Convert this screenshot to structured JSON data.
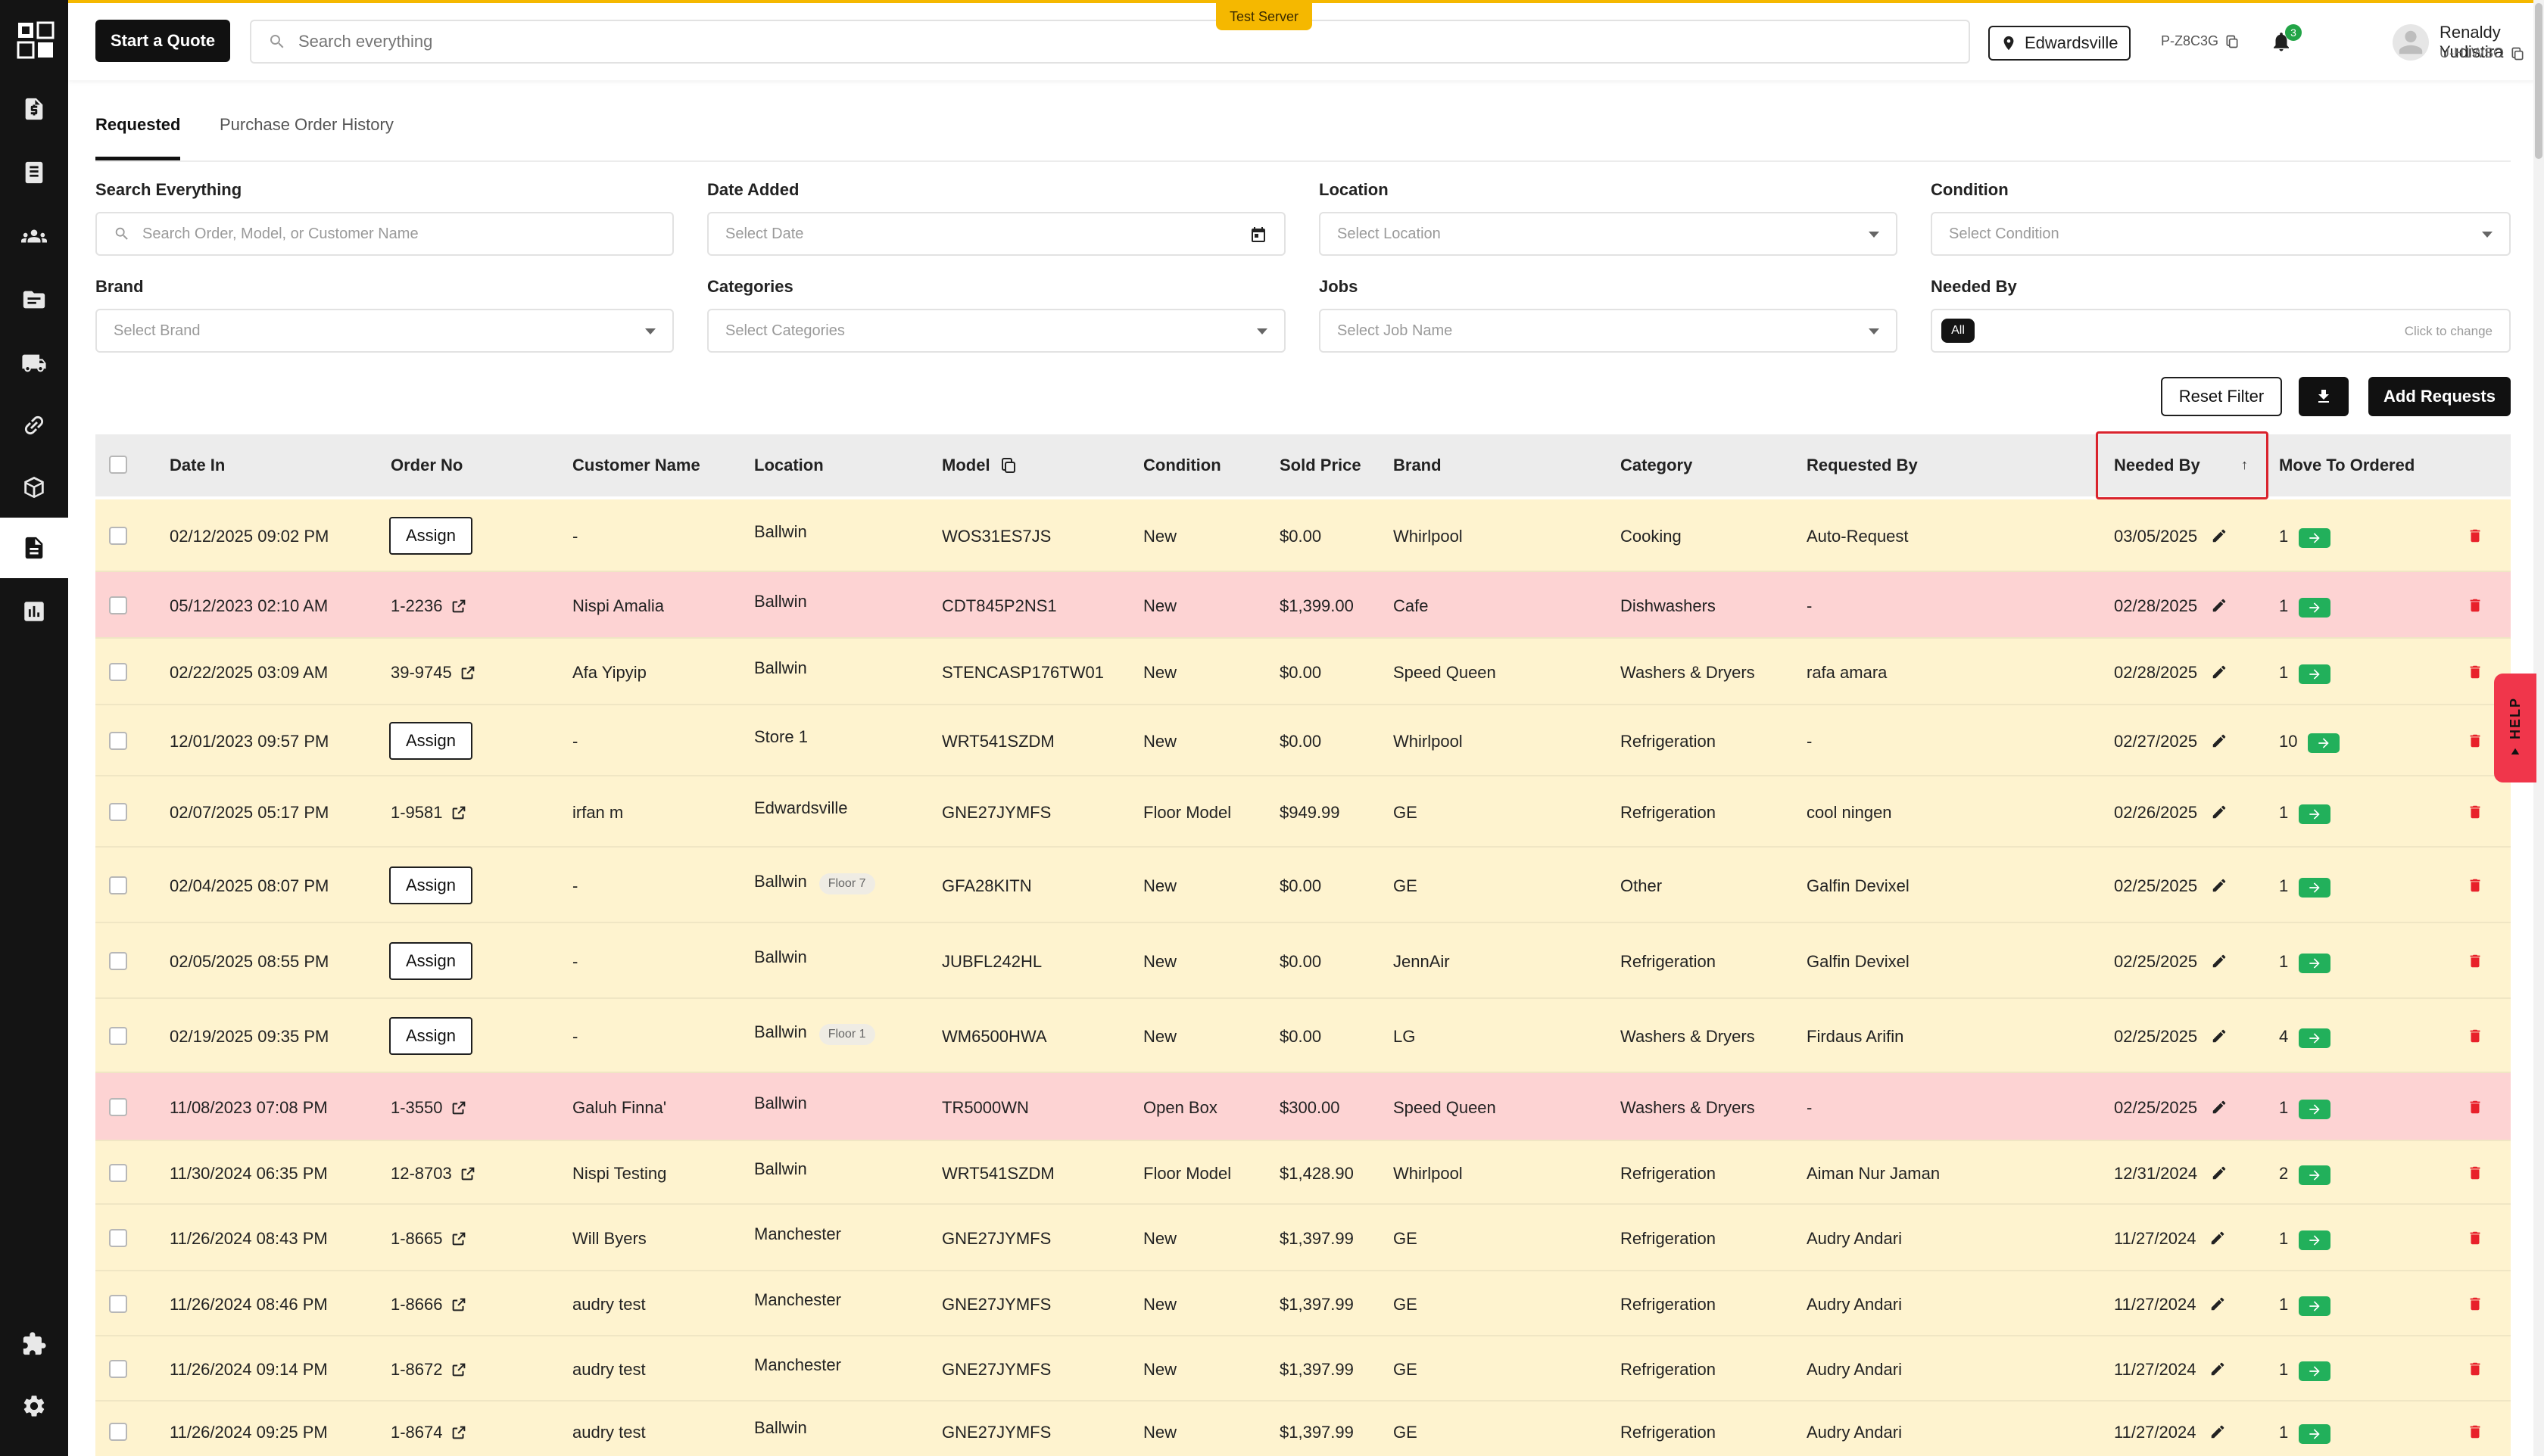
{
  "topbar": {
    "start_quote": "Start a Quote",
    "search_placeholder": "Search everything",
    "test_server": "Test Server",
    "location": "Edwardsville",
    "store_code": "P-Z8C3G",
    "notification_count": "3",
    "user_name": "Renaldy Yudistira",
    "user_code": "U-H1WSO"
  },
  "tabs": [
    {
      "label": "Requested"
    },
    {
      "label": "Purchase Order History"
    }
  ],
  "filters": {
    "search": {
      "label": "Search Everything",
      "placeholder": "Search Order, Model, or Customer Name"
    },
    "date_added": {
      "label": "Date Added",
      "placeholder": "Select Date"
    },
    "location": {
      "label": "Location",
      "placeholder": "Select Location"
    },
    "condition": {
      "label": "Condition",
      "placeholder": "Select Condition"
    },
    "brand": {
      "label": "Brand",
      "placeholder": "Select Brand"
    },
    "categories": {
      "label": "Categories",
      "placeholder": "Select Categories"
    },
    "jobs": {
      "label": "Jobs",
      "placeholder": "Select Job Name"
    },
    "needed_by": {
      "label": "Needed By",
      "value": "All",
      "hint": "Click to change"
    }
  },
  "actions": {
    "reset": "Reset Filter",
    "add": "Add Requests"
  },
  "table": {
    "headers": {
      "date_in": "Date In",
      "order_no": "Order No",
      "customer": "Customer Name",
      "location": "Location",
      "model": "Model",
      "condition": "Condition",
      "sold_price": "Sold Price",
      "brand": "Brand",
      "category": "Category",
      "requested_by": "Requested By",
      "needed_by": "Needed By",
      "move": "Move To Ordered"
    },
    "assign_label": "Assign",
    "rows": [
      {
        "date": "02/12/2025 09:02 PM",
        "order": "",
        "customer": "-",
        "location": "Ballwin",
        "floor": "",
        "model": "WOS31ES7JS",
        "condition": "New",
        "price": "$0.00",
        "brand": "Whirlpool",
        "category": "Cooking",
        "requested_by": "Auto-Request",
        "needed": "03/05/2025",
        "qty": "1",
        "color": "yellow"
      },
      {
        "date": "05/12/2023 02:10 AM",
        "order": "1-2236",
        "customer": "Nispi Amalia",
        "location": "Ballwin",
        "floor": "",
        "model": "CDT845P2NS1",
        "condition": "New",
        "price": "$1,399.00",
        "brand": "Cafe",
        "category": "Dishwashers",
        "requested_by": "-",
        "needed": "02/28/2025",
        "qty": "1",
        "color": "red"
      },
      {
        "date": "02/22/2025 03:09 AM",
        "order": "39-9745",
        "customer": "Afa Yipyip",
        "location": "Ballwin",
        "floor": "",
        "model": "STENCASP176TW01",
        "condition": "New",
        "price": "$0.00",
        "brand": "Speed Queen",
        "category": "Washers & Dryers",
        "requested_by": "rafa amara",
        "needed": "02/28/2025",
        "qty": "1",
        "color": "yellow"
      },
      {
        "date": "12/01/2023 09:57 PM",
        "order": "",
        "customer": "-",
        "location": "Store 1",
        "floor": "",
        "model": "WRT541SZDM",
        "condition": "New",
        "price": "$0.00",
        "brand": "Whirlpool",
        "category": "Refrigeration",
        "requested_by": "-",
        "needed": "02/27/2025",
        "qty": "10",
        "color": "yellow"
      },
      {
        "date": "02/07/2025 05:17 PM",
        "order": "1-9581",
        "customer": "irfan m",
        "location": "Edwardsville",
        "floor": "",
        "model": "GNE27JYMFS",
        "condition": "Floor Model",
        "price": "$949.99",
        "brand": "GE",
        "category": "Refrigeration",
        "requested_by": "cool ningen",
        "needed": "02/26/2025",
        "qty": "1",
        "color": "yellow"
      },
      {
        "date": "02/04/2025 08:07 PM",
        "order": "",
        "customer": "-",
        "location": "Ballwin",
        "floor": "Floor 7",
        "model": "GFA28KITN",
        "condition": "New",
        "price": "$0.00",
        "brand": "GE",
        "category": "Other",
        "requested_by": "Galfin Devixel",
        "needed": "02/25/2025",
        "qty": "1",
        "color": "yellow"
      },
      {
        "date": "02/05/2025 08:55 PM",
        "order": "",
        "customer": "-",
        "location": "Ballwin",
        "floor": "",
        "model": "JUBFL242HL",
        "condition": "New",
        "price": "$0.00",
        "brand": "JennAir",
        "category": "Refrigeration",
        "requested_by": "Galfin Devixel",
        "needed": "02/25/2025",
        "qty": "1",
        "color": "yellow"
      },
      {
        "date": "02/19/2025 09:35 PM",
        "order": "",
        "customer": "-",
        "location": "Ballwin",
        "floor": "Floor 1",
        "model": "WM6500HWA",
        "condition": "New",
        "price": "$0.00",
        "brand": "LG",
        "category": "Washers & Dryers",
        "requested_by": "Firdaus Arifin",
        "needed": "02/25/2025",
        "qty": "4",
        "color": "yellow"
      },
      {
        "date": "11/08/2023 07:08 PM",
        "order": "1-3550",
        "customer": "Galuh Finna'",
        "location": "Ballwin",
        "floor": "",
        "model": "TR5000WN",
        "condition": "Open Box",
        "price": "$300.00",
        "brand": "Speed Queen",
        "category": "Washers & Dryers",
        "requested_by": "-",
        "needed": "02/25/2025",
        "qty": "1",
        "color": "red"
      },
      {
        "date": "11/30/2024 06:35 PM",
        "order": "12-8703",
        "customer": "Nispi Testing",
        "location": "Ballwin",
        "floor": "",
        "model": "WRT541SZDM",
        "condition": "Floor Model",
        "price": "$1,428.90",
        "brand": "Whirlpool",
        "category": "Refrigeration",
        "requested_by": "Aiman Nur Jaman",
        "needed": "12/31/2024",
        "qty": "2",
        "color": "yellow"
      },
      {
        "date": "11/26/2024 08:43 PM",
        "order": "1-8665",
        "customer": "Will Byers",
        "location": "Manchester",
        "floor": "",
        "model": "GNE27JYMFS",
        "condition": "New",
        "price": "$1,397.99",
        "brand": "GE",
        "category": "Refrigeration",
        "requested_by": "Audry Andari",
        "needed": "11/27/2024",
        "qty": "1",
        "color": "yellow"
      },
      {
        "date": "11/26/2024 08:46 PM",
        "order": "1-8666",
        "customer": "audry test",
        "location": "Manchester",
        "floor": "",
        "model": "GNE27JYMFS",
        "condition": "New",
        "price": "$1,397.99",
        "brand": "GE",
        "category": "Refrigeration",
        "requested_by": "Audry Andari",
        "needed": "11/27/2024",
        "qty": "1",
        "color": "yellow"
      },
      {
        "date": "11/26/2024 09:14 PM",
        "order": "1-8672",
        "customer": "audry test",
        "location": "Manchester",
        "floor": "",
        "model": "GNE27JYMFS",
        "condition": "New",
        "price": "$1,397.99",
        "brand": "GE",
        "category": "Refrigeration",
        "requested_by": "Audry Andari",
        "needed": "11/27/2024",
        "qty": "1",
        "color": "yellow"
      },
      {
        "date": "11/26/2024 09:25 PM",
        "order": "1-8674",
        "customer": "audry test",
        "location": "Ballwin",
        "floor": "",
        "model": "GNE27JYMFS",
        "condition": "New",
        "price": "$1,397.99",
        "brand": "GE",
        "category": "Refrigeration",
        "requested_by": "Audry Andari",
        "needed": "11/27/2024",
        "qty": "1",
        "color": "yellow"
      }
    ]
  },
  "help": "HELP",
  "icons": {
    "sidebar": [
      "invoice-icon",
      "ledger-icon",
      "customers-icon",
      "folder-icon",
      "truck-icon",
      "link-icon",
      "box-icon",
      "requests-icon",
      "chart-icon",
      "puzzle-icon",
      "gear-icon"
    ]
  },
  "colors": {
    "accent": "#f5b800",
    "go": "#22b05b",
    "delete": "#e8202a",
    "highlight": "#d9232d"
  }
}
